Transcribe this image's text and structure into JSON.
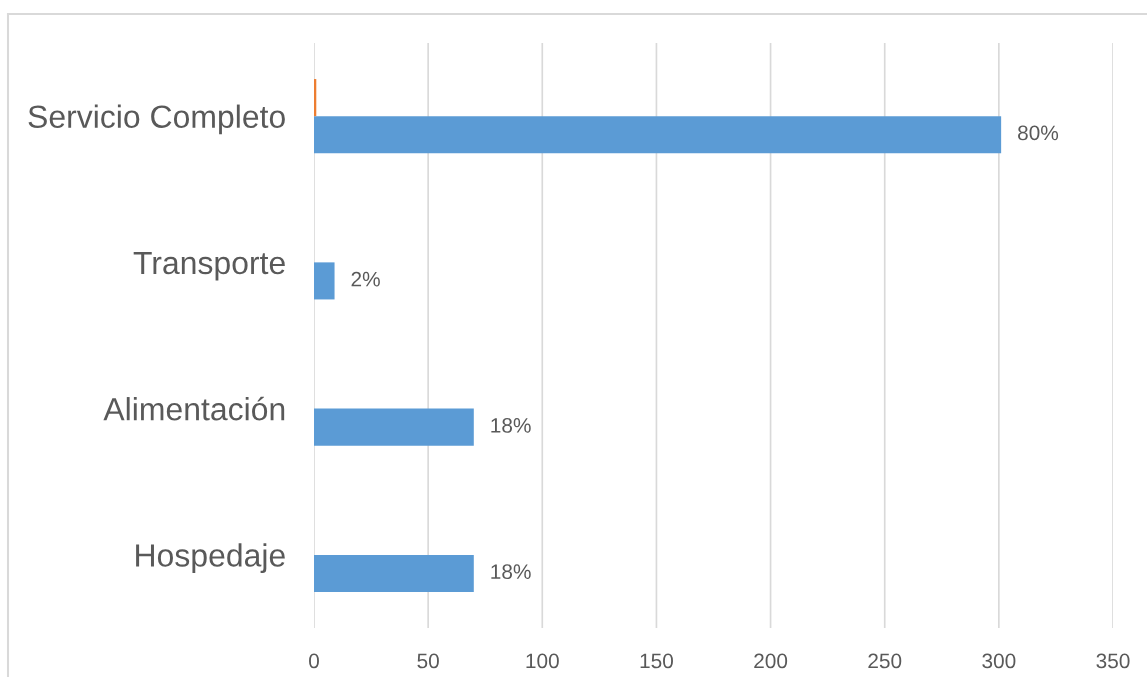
{
  "chart_data": {
    "type": "bar",
    "orientation": "horizontal",
    "categories": [
      "Servicio Completo",
      "Transporte",
      "Alimentación",
      "Hospedaje"
    ],
    "series": [
      {
        "color": "#5b9bd5",
        "values": [
          301,
          9,
          70,
          70
        ]
      },
      {
        "color": "#ed7d31",
        "values": [
          1,
          null,
          null,
          null
        ]
      }
    ],
    "annotations": [
      {
        "text": "80%",
        "x": 301,
        "y": "Servicio Completo"
      },
      {
        "text": "2%",
        "x": 9,
        "y": "Transporte"
      },
      {
        "text": "18%",
        "x": 70,
        "y": "Alimentación"
      },
      {
        "text": "18%",
        "x": 70,
        "y": "Hospedaje"
      }
    ],
    "xlim": [
      0,
      350
    ],
    "xticks": [
      0,
      50,
      100,
      150,
      200,
      250,
      300,
      350
    ],
    "grid": "x"
  }
}
